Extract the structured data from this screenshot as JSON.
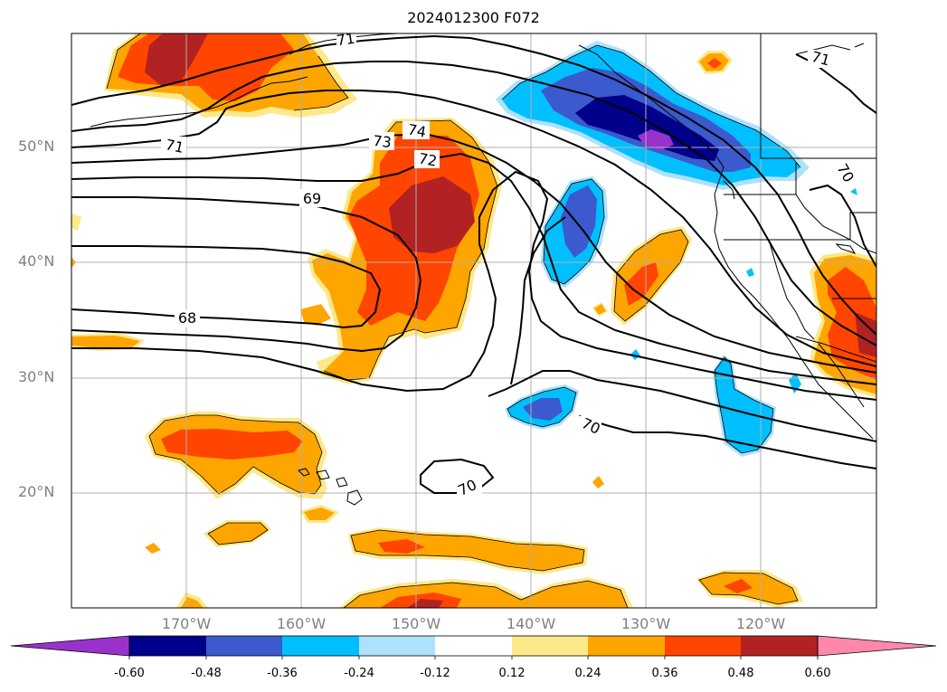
{
  "title": "2024012300 F072",
  "lat_labels": [
    "50°N",
    "40°N",
    "30°N",
    "20°N"
  ],
  "lon_labels": [
    "170°W",
    "160°W",
    "150°W",
    "140°W",
    "130°W",
    "120°W"
  ],
  "contour_labels": [
    "71",
    "74",
    "73",
    "72",
    "71",
    "69",
    "68",
    "70",
    "70",
    "70",
    "71"
  ],
  "colorbar": {
    "ticks": [
      "-0.60",
      "-0.48",
      "-0.36",
      "-0.24",
      "-0.12",
      "0.12",
      "0.24",
      "0.36",
      "0.48",
      "0.60"
    ],
    "colors": [
      "#9932cc",
      "#00008b",
      "#3a5acd",
      "#00bfff",
      "#aee2fa",
      "#ffffff",
      "#fde88a",
      "#ffa500",
      "#ff4500",
      "#b22222",
      "#ff88aa"
    ]
  },
  "fill_colors": {
    "pos1": "#fde88a",
    "pos2": "#ffa500",
    "pos3": "#ff4500",
    "pos4": "#b22222",
    "neg1": "#aee2fa",
    "neg2": "#00bfff",
    "neg3": "#3a5acd",
    "neg4": "#00008b",
    "neg5": "#9932cc"
  }
}
